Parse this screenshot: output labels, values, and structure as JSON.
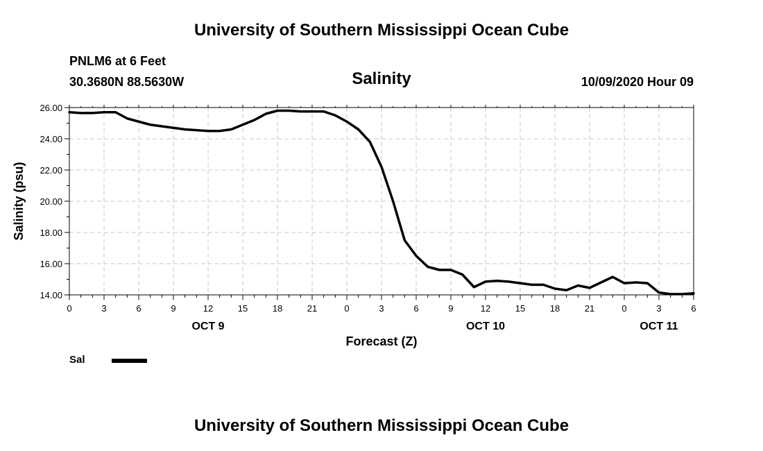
{
  "header_title": "University of Southern Mississippi Ocean Cube",
  "footer_title": "University of Southern Mississippi Ocean Cube",
  "station": "PNLM6 at 6 Feet",
  "coordinates": "30.3680N 88.5630W",
  "timestamp": "10/09/2020 Hour 09",
  "legend": {
    "label": "Sal",
    "color": "#000000"
  },
  "chart_data": {
    "type": "line",
    "title": "Salinity",
    "xlabel": "Forecast (Z)",
    "ylabel": "Salinity (psu)",
    "ylim": [
      14.0,
      26.0
    ],
    "yticks": [
      "14.00",
      "16.00",
      "18.00",
      "20.00",
      "22.00",
      "24.00",
      "26.00"
    ],
    "xlim": [
      0,
      54
    ],
    "xticks": [
      "0",
      "3",
      "6",
      "9",
      "12",
      "15",
      "18",
      "21",
      "0",
      "3",
      "6",
      "9",
      "12",
      "15",
      "18",
      "21",
      "0",
      "3",
      "6"
    ],
    "day_labels": [
      {
        "label": "OCT 9",
        "x": 12
      },
      {
        "label": "OCT 10",
        "x": 36
      },
      {
        "label": "OCT 11",
        "x": 51
      }
    ],
    "grid": true,
    "legend_position": "bottom-left",
    "series": [
      {
        "name": "Sal",
        "color": "#000000",
        "x": [
          0,
          1,
          2,
          3,
          4,
          5,
          6,
          7,
          8,
          9,
          10,
          11,
          12,
          13,
          14,
          15,
          16,
          17,
          18,
          19,
          20,
          21,
          22,
          23,
          24,
          25,
          26,
          27,
          28,
          29,
          30,
          31,
          32,
          33,
          34,
          35,
          36,
          37,
          38,
          39,
          40,
          41,
          42,
          43,
          44,
          45,
          46,
          47,
          48,
          49,
          50,
          51,
          52,
          53,
          54
        ],
        "values": [
          25.7,
          25.65,
          25.65,
          25.7,
          25.7,
          25.3,
          25.1,
          24.9,
          24.8,
          24.7,
          24.6,
          24.55,
          24.5,
          24.5,
          24.6,
          24.9,
          25.2,
          25.6,
          25.8,
          25.8,
          25.75,
          25.75,
          25.75,
          25.5,
          25.1,
          24.6,
          23.8,
          22.2,
          20.0,
          17.5,
          16.5,
          15.8,
          15.6,
          15.6,
          15.3,
          14.5,
          14.85,
          14.9,
          14.85,
          14.75,
          14.65,
          14.65,
          14.4,
          14.3,
          14.6,
          14.45,
          14.8,
          15.15,
          14.75,
          14.8,
          14.75,
          14.15,
          14.05,
          14.05,
          14.1
        ]
      }
    ]
  }
}
